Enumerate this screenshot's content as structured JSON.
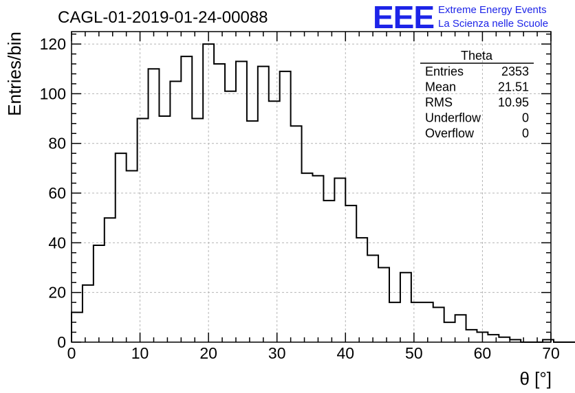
{
  "chart_data": {
    "type": "histogram",
    "title": "CAGL-01-2019-01-24-00088",
    "xlabel": "θ [°]",
    "ylabel": "Entries/bin",
    "xlim": [
      0,
      70
    ],
    "ylim": [
      0,
      125
    ],
    "grid": true,
    "x_ticks": [
      "0",
      "10",
      "20",
      "30",
      "40",
      "50",
      "60",
      "70"
    ],
    "y_ticks": [
      "0",
      "20",
      "40",
      "60",
      "80",
      "100",
      "120"
    ],
    "bin_width": 1.6,
    "bin_start": 0,
    "values": [
      12,
      23,
      39,
      50,
      76,
      69,
      90,
      110,
      91,
      105,
      115,
      90,
      120,
      112,
      101,
      113,
      89,
      111,
      97,
      109,
      87,
      68,
      67,
      57,
      66,
      55,
      42,
      35,
      30,
      16,
      28,
      16,
      16,
      14,
      8,
      11,
      5,
      4,
      3,
      2,
      1,
      0,
      0,
      1,
      0,
      0
    ]
  },
  "stats_box": {
    "title": "Theta",
    "rows": [
      {
        "label": "Entries",
        "value": "2353"
      },
      {
        "label": "Mean",
        "value": "21.51"
      },
      {
        "label": "RMS",
        "value": "10.95"
      },
      {
        "label": "Underflow",
        "value": "0"
      },
      {
        "label": "Overflow",
        "value": "0"
      }
    ]
  },
  "logo": {
    "mark": "EEE",
    "line1": "Extreme Energy Events",
    "line2": "La Scienza nelle Scuole"
  },
  "colors": {
    "logo": "#1d24e8",
    "grid": "#b4b4b4",
    "line": "#000000"
  }
}
